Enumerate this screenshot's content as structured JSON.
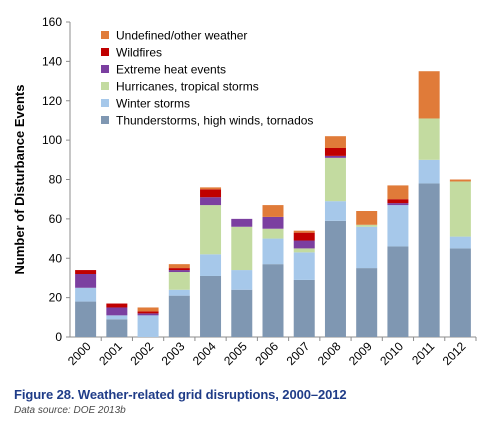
{
  "chart_data": {
    "type": "bar",
    "stacked": true,
    "categories": [
      "2000",
      "2001",
      "2002",
      "2003",
      "2004",
      "2005",
      "2006",
      "2007",
      "2008",
      "2009",
      "2010",
      "2011",
      "2012"
    ],
    "series": [
      {
        "name": "Thunderstorms, high winds, tornados",
        "color": "#7f97b2",
        "values": [
          18,
          9,
          0,
          21,
          31,
          24,
          37,
          29,
          59,
          35,
          46,
          78,
          45
        ]
      },
      {
        "name": "Winter storms",
        "color": "#a6c8ea",
        "values": [
          7,
          2,
          11,
          3,
          11,
          10,
          13,
          14,
          10,
          21,
          21,
          12,
          6
        ]
      },
      {
        "name": "Hurricanes, tropical storms",
        "color": "#c3dba0",
        "values": [
          0,
          0,
          0,
          9,
          25,
          22,
          5,
          2,
          22,
          1,
          0,
          21,
          28
        ]
      },
      {
        "name": "Extreme heat events",
        "color": "#7b3fa0",
        "values": [
          7,
          4,
          1,
          1,
          4,
          4,
          6,
          4,
          1,
          0,
          1,
          0,
          0
        ]
      },
      {
        "name": "Wildfires",
        "color": "#c00000",
        "values": [
          2,
          2,
          1,
          1,
          4,
          0,
          0,
          4,
          4,
          0,
          2,
          0,
          0
        ]
      },
      {
        "name": "Undefined/other weather",
        "color": "#e07b39",
        "values": [
          0,
          0,
          2,
          2,
          1,
          0,
          6,
          1,
          6,
          7,
          7,
          24,
          1
        ]
      }
    ],
    "legend_order": [
      "Undefined/other weather",
      "Wildfires",
      "Extreme heat events",
      "Hurricanes, tropical storms",
      "Winter storms",
      "Thunderstorms, high winds, tornados"
    ],
    "ylabel": "Number of Disturbance Events",
    "xlabel": "",
    "ylim": [
      0,
      160
    ],
    "yticks": [
      0,
      20,
      40,
      60,
      80,
      100,
      120,
      140,
      160
    ],
    "grid": false,
    "legend_position": "top-left"
  },
  "caption": {
    "figure_title": "Figure 28. Weather-related grid disruptions, 2000–2012",
    "source": "Data source: DOE 2013b"
  }
}
